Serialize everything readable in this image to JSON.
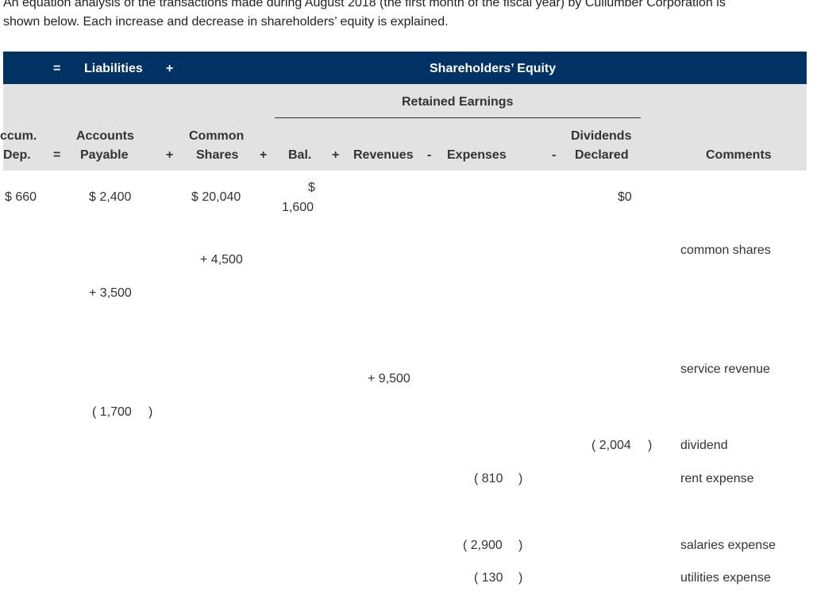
{
  "intro": {
    "line1": "An equation analysis of the transactions made during August 2018 (the first month of the fiscal year) by Cullumber Corporation is",
    "line2": "shown below. Each increase and decrease in shareholders’ equity is explained."
  },
  "header": {
    "eq": "=",
    "liabilities": "Liabilities",
    "plus": "+",
    "shareholders_equity": "Shareholders’ Equity",
    "retained_earnings": "Retained Earnings"
  },
  "columns": {
    "accum_l1": "ccum.",
    "accum_l2": "Dep.",
    "eq": "=",
    "ap_l1": "Accounts",
    "ap_l2": "Payable",
    "plus1": "+",
    "cs_l1": "Common",
    "cs_l2": "Shares",
    "plus2": "+",
    "bal": "Bal.",
    "plus3": "+",
    "revenues": "Revenues",
    "minus1": "-",
    "expenses": "Expenses",
    "minus2": "-",
    "div_l1": "Dividends",
    "div_l2": "Declared",
    "comments": "Comments"
  },
  "balances": {
    "accum": "$ 660",
    "ap": "$ 2,400",
    "cs": "$ 20,040",
    "bal_sym": "$",
    "bal_val": "1,600",
    "div": "$0"
  },
  "transactions": [
    {
      "cs": "+ 4,500",
      "comment": "common shares"
    },
    {
      "ap": "+ 3,500"
    },
    {
      "rev": "+ 9,500",
      "comment": "service revenue"
    },
    {
      "ap": "( 1,700",
      "ap_close": ")"
    },
    {
      "div": "( 2,004",
      "div_close": ")",
      "comment": "dividend"
    },
    {
      "exp": "( 810",
      "exp_close": ")",
      "comment": "rent expense"
    },
    {
      "exp": "( 2,900",
      "exp_close": ")",
      "comment": "salaries expense"
    },
    {
      "exp": "( 130",
      "exp_close": ")",
      "comment": "utilities expense"
    }
  ]
}
